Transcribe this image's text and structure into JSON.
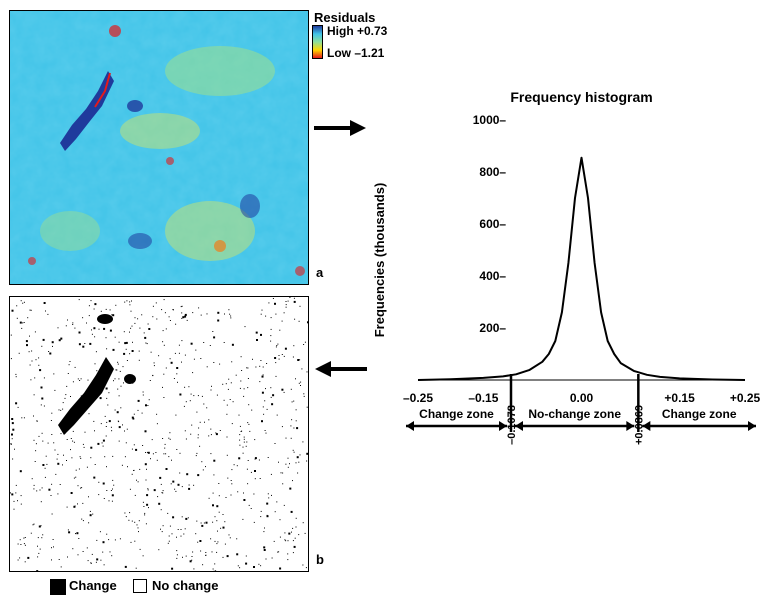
{
  "colors": {
    "low": "#e31a1c",
    "mid_low": "#ffd700",
    "mid": "#8fe09a",
    "mid_high": "#41c4e8",
    "high": "#1f3a9c",
    "change": "#000000",
    "nochange": "#ffffff"
  },
  "panel_a": {
    "label": "a",
    "legend_title": "Residuals",
    "legend_high": "High +0.73",
    "legend_low": "Low –1.21"
  },
  "panel_b": {
    "label": "b",
    "legend_change": "Change",
    "legend_nochange": "No change"
  },
  "arrows": {
    "to_histogram": "arrow-right-icon",
    "to_change_map": "arrow-left-icon"
  },
  "chart_data": {
    "type": "line",
    "title": "Frequency histogram",
    "ylabel": "Frequencies (thousands)",
    "xlabel": "",
    "xlim": [
      -0.25,
      0.25
    ],
    "ylim": [
      0,
      1000
    ],
    "x_ticks": [
      -0.25,
      -0.15,
      0.0,
      0.15,
      0.25
    ],
    "x_tick_labels": [
      "–0.25",
      "–0.15",
      "0.00",
      "+0.15",
      "+0.25"
    ],
    "y_ticks": [
      200,
      400,
      600,
      800,
      1000
    ],
    "y_tick_labels": [
      "200–",
      "400–",
      "600–",
      "800–",
      "1000–"
    ],
    "thresholds": [
      {
        "x": -0.1078,
        "label": "–0.1078"
      },
      {
        "x": 0.0869,
        "label": "+0.0869"
      }
    ],
    "zones": [
      {
        "label": "Change zone",
        "from": -0.25,
        "to": -0.1078
      },
      {
        "label": "No-change zone",
        "from": -0.1078,
        "to": 0.0869
      },
      {
        "label": "Change zone",
        "from": 0.0869,
        "to": 0.25
      }
    ],
    "series": [
      {
        "x": [
          -0.25,
          -0.2,
          -0.15,
          -0.12,
          -0.1,
          -0.08,
          -0.06,
          -0.05,
          -0.04,
          -0.03,
          -0.02,
          -0.01,
          0.0,
          0.01,
          0.02,
          0.03,
          0.04,
          0.05,
          0.06,
          0.08,
          0.1,
          0.12,
          0.15,
          0.2,
          0.25
        ],
        "y": [
          0,
          3,
          8,
          14,
          22,
          38,
          70,
          100,
          150,
          260,
          450,
          700,
          855,
          700,
          450,
          260,
          150,
          100,
          65,
          35,
          20,
          12,
          6,
          2,
          0
        ]
      }
    ]
  }
}
